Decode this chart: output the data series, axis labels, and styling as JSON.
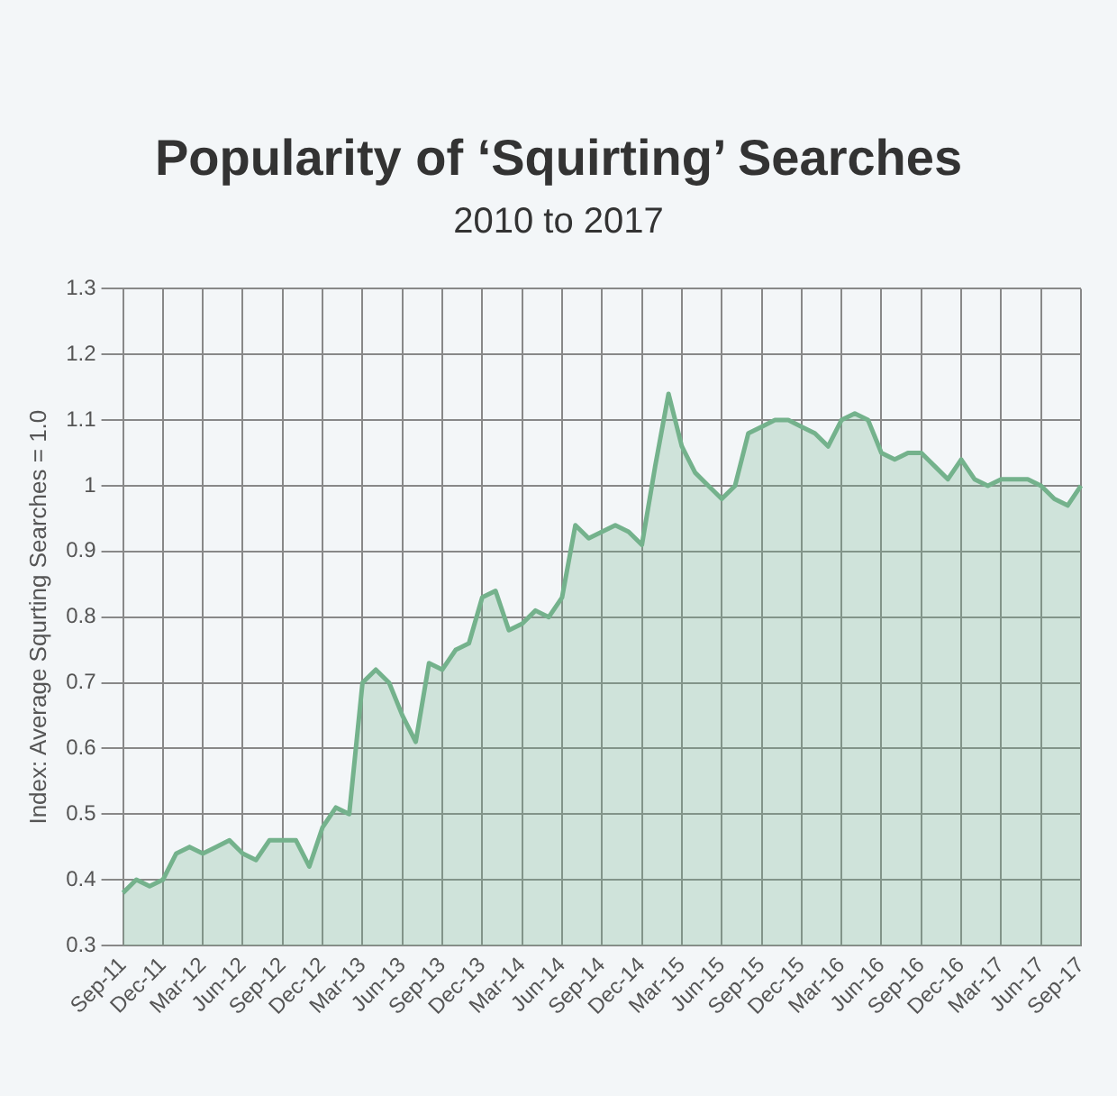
{
  "chart_data": {
    "type": "area",
    "title": "Popularity of ‘Squirting’ Searches",
    "subtitle": "2010 to 2017",
    "ylabel": "Index: Average Squrting Searches = 1.0",
    "categories": [
      "Sep-11",
      null,
      null,
      "Dec-11",
      null,
      null,
      "Mar-12",
      null,
      null,
      "Jun-12",
      null,
      null,
      "Sep-12",
      null,
      null,
      "Dec-12",
      null,
      null,
      "Mar-13",
      null,
      null,
      "Jun-13",
      null,
      null,
      "Sep-13",
      null,
      null,
      "Dec-13",
      null,
      null,
      "Mar-14",
      null,
      null,
      "Jun-14",
      null,
      null,
      "Sep-14",
      null,
      null,
      "Dec-14",
      null,
      null,
      "Mar-15",
      null,
      null,
      "Jun-15",
      null,
      null,
      "Sep-15",
      null,
      null,
      "Dec-15",
      null,
      null,
      "Mar-16",
      null,
      null,
      "Jun-16",
      null,
      null,
      "Sep-16",
      null,
      null,
      "Dec-16",
      null,
      null,
      "Mar-17",
      null,
      null,
      "Jun-17",
      null,
      null,
      "Sep-17"
    ],
    "series": [
      {
        "color": "#74b28c",
        "values": [
          0.38,
          0.4,
          0.39,
          0.4,
          0.44,
          0.45,
          0.44,
          0.45,
          0.46,
          0.44,
          0.43,
          0.46,
          0.46,
          0.46,
          0.42,
          0.48,
          0.51,
          0.5,
          0.7,
          0.72,
          0.7,
          0.65,
          0.61,
          0.73,
          0.72,
          0.75,
          0.76,
          0.83,
          0.84,
          0.78,
          0.79,
          0.81,
          0.8,
          0.83,
          0.94,
          0.92,
          0.93,
          0.94,
          0.93,
          0.91,
          1.03,
          1.14,
          1.06,
          1.02,
          1.0,
          0.98,
          1.0,
          1.08,
          1.09,
          1.1,
          1.1,
          1.09,
          1.08,
          1.06,
          1.1,
          1.11,
          1.1,
          1.05,
          1.04,
          1.05,
          1.05,
          1.03,
          1.01,
          1.04,
          1.01,
          1.0,
          1.01,
          1.01,
          1.01,
          1.0,
          0.98,
          0.97,
          1.0
        ]
      }
    ],
    "ylim": [
      0.3,
      1.3
    ],
    "yticks": [
      0.3,
      0.4,
      0.5,
      0.6,
      0.7,
      0.8,
      0.9,
      1,
      1.1,
      1.2,
      1.3
    ],
    "grid": true,
    "legend": false,
    "marker": "none",
    "line_style": "solid"
  }
}
